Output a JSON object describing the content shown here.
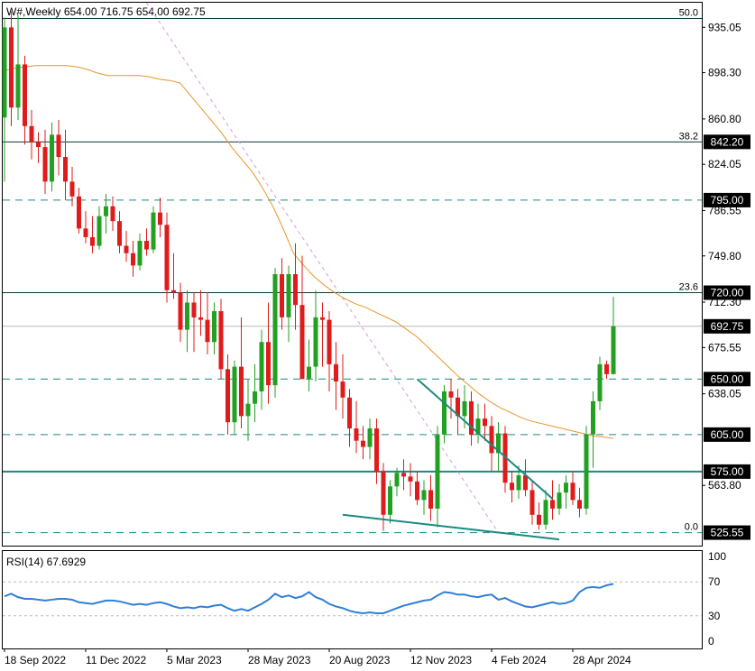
{
  "header": {
    "symbol": "W#",
    "timeframe": "Weekly",
    "open": "654.00",
    "high": "716.75",
    "low": "654.00",
    "close": "692.75"
  },
  "colors": {
    "up": "#22a022",
    "down": "#e01b1b",
    "ma": "#e8962a",
    "teal": "#1a8a80",
    "rsi": "#2f7fd6",
    "fib_diag": "#d79ad7",
    "badge_fill": "#000000",
    "badge_text": "#ffffff"
  },
  "chart_data": [
    {
      "type": "candlestick",
      "title": "W#,Weekly 654.00 716.75 654.00 692.75",
      "y_range": [
        515.0,
        955.0
      ],
      "y_ticks": [
        "935.05",
        "898.30",
        "860.80",
        "824.05",
        "786.55",
        "749.80",
        "712.30",
        "675.55",
        "638.05",
        "563.80"
      ],
      "x_ticks": [
        "18 Sep 2022",
        "11 Dec 2022",
        "5 Mar 2023",
        "28 May 2023",
        "20 Aug 2023",
        "12 Nov 2023",
        "4 Feb 2024",
        "28 Apr 2024"
      ],
      "x_tick_index": [
        0,
        12,
        24,
        36,
        48,
        60,
        72,
        84
      ],
      "candles": [
        [
          862,
          943,
          810,
          935
        ],
        [
          935,
          948,
          855,
          870
        ],
        [
          870,
          945,
          860,
          905
        ],
        [
          905,
          912,
          840,
          855
        ],
        [
          855,
          868,
          828,
          842
        ],
        [
          842,
          850,
          825,
          838
        ],
        [
          838,
          852,
          800,
          810
        ],
        [
          810,
          858,
          802,
          848
        ],
        [
          848,
          860,
          815,
          830
        ],
        [
          830,
          852,
          795,
          810
        ],
        [
          810,
          822,
          790,
          798
        ],
        [
          798,
          805,
          768,
          772
        ],
        [
          772,
          786,
          760,
          765
        ],
        [
          765,
          782,
          752,
          758
        ],
        [
          758,
          790,
          755,
          782
        ],
        [
          782,
          800,
          768,
          790
        ],
        [
          790,
          798,
          770,
          778
        ],
        [
          778,
          786,
          752,
          758
        ],
        [
          758,
          770,
          745,
          752
        ],
        [
          752,
          762,
          733,
          742
        ],
        [
          742,
          768,
          738,
          762
        ],
        [
          762,
          772,
          750,
          755
        ],
        [
          755,
          790,
          752,
          785
        ],
        [
          785,
          797,
          765,
          775
        ],
        [
          775,
          785,
          712,
          722
        ],
        [
          722,
          752,
          715,
          720
        ],
        [
          720,
          728,
          680,
          690
        ],
        [
          690,
          722,
          672,
          712
        ],
        [
          712,
          720,
          672,
          700
        ],
        [
          700,
          722,
          685,
          698
        ],
        [
          698,
          720,
          670,
          680
        ],
        [
          680,
          712,
          670,
          705
        ],
        [
          705,
          715,
          650,
          658
        ],
        [
          658,
          670,
          605,
          615
        ],
        [
          615,
          665,
          605,
          660
        ],
        [
          660,
          700,
          610,
          620
        ],
        [
          620,
          650,
          600,
          630
        ],
        [
          630,
          662,
          615,
          640
        ],
        [
          640,
          690,
          625,
          680
        ],
        [
          680,
          712,
          630,
          645
        ],
        [
          645,
          740,
          635,
          735
        ],
        [
          735,
          748,
          690,
          700
        ],
        [
          700,
          742,
          680,
          735
        ],
        [
          735,
          760,
          690,
          710
        ],
        [
          710,
          750,
          650,
          650
        ],
        [
          650,
          682,
          640,
          660
        ],
        [
          660,
          722,
          648,
          700
        ],
        [
          700,
          712,
          660,
          698
        ],
        [
          698,
          705,
          640,
          662
        ],
        [
          662,
          680,
          625,
          648
        ],
        [
          648,
          670,
          618,
          635
        ],
        [
          635,
          642,
          595,
          610
        ],
        [
          610,
          632,
          590,
          600
        ],
        [
          600,
          612,
          585,
          595
        ],
        [
          595,
          618,
          585,
          610
        ],
        [
          610,
          618,
          565,
          575
        ],
        [
          575,
          582,
          527,
          540
        ],
        [
          540,
          568,
          533,
          563
        ],
        [
          563,
          578,
          555,
          574
        ],
        [
          574,
          585,
          560,
          571
        ],
        [
          571,
          582,
          555,
          567
        ],
        [
          567,
          575,
          548,
          552
        ],
        [
          552,
          568,
          540,
          560
        ],
        [
          560,
          572,
          535,
          545
        ],
        [
          545,
          612,
          530,
          605
        ],
        [
          605,
          645,
          598,
          640
        ],
        [
          640,
          650,
          618,
          635
        ],
        [
          635,
          642,
          605,
          620
        ],
        [
          620,
          645,
          610,
          632
        ],
        [
          632,
          640,
          596,
          605
        ],
        [
          605,
          630,
          598,
          618
        ],
        [
          618,
          630,
          600,
          612
        ],
        [
          612,
          620,
          575,
          590
        ],
        [
          590,
          615,
          575,
          606
        ],
        [
          606,
          612,
          558,
          566
        ],
        [
          566,
          575,
          550,
          560
        ],
        [
          560,
          580,
          553,
          572
        ],
        [
          572,
          585,
          555,
          560
        ],
        [
          560,
          568,
          532,
          540
        ],
        [
          540,
          550,
          528,
          532
        ],
        [
          532,
          560,
          528,
          552
        ],
        [
          552,
          568,
          536,
          545
        ],
        [
          545,
          565,
          540,
          558
        ],
        [
          558,
          572,
          545,
          566
        ],
        [
          566,
          575,
          548,
          552
        ],
        [
          552,
          562,
          538,
          545
        ],
        [
          545,
          612,
          540,
          605
        ],
        [
          605,
          640,
          578,
          632
        ],
        [
          632,
          668,
          625,
          662
        ],
        [
          662,
          665,
          650,
          654
        ],
        [
          654,
          716.75,
          654,
          692.75
        ]
      ],
      "ma_series": [
        {
          "name": "",
          "values": [
            900,
            902,
            903,
            904,
            904,
            904,
            904,
            903,
            901,
            898,
            896,
            896,
            896,
            896,
            895,
            893,
            892,
            890,
            880,
            870,
            860,
            850,
            838,
            828,
            818,
            805,
            790,
            772,
            752,
            742,
            733,
            726,
            720,
            715,
            711,
            708,
            704,
            700,
            696,
            690,
            684,
            676,
            668,
            660,
            652,
            645,
            638,
            632,
            627,
            623,
            619,
            616,
            614,
            612,
            610,
            608,
            606,
            604,
            603,
            602
          ]
        }
      ],
      "ma_start_index": 0,
      "hlines": [
        {
          "value": 942.2,
          "style": "solid",
          "label": "50.0"
        },
        {
          "value": 842.2,
          "style": "solid",
          "label": "38.2",
          "badge": "842.20"
        },
        {
          "value": 795.0,
          "style": "dashed",
          "badge": "795.00"
        },
        {
          "value": 720.0,
          "style": "solid",
          "label": "23.6",
          "badge": "720.00"
        },
        {
          "value": 692.75,
          "style": "gray",
          "badge": "692.75"
        },
        {
          "value": 650.0,
          "style": "dashed",
          "badge": "650.00"
        },
        {
          "value": 605.0,
          "style": "dashed",
          "badge": "605.00"
        },
        {
          "value": 575.0,
          "style": "solid-thick",
          "badge": "575.00"
        },
        {
          "value": 525.55,
          "style": "dashed",
          "label": "0.0",
          "badge": "525.55"
        }
      ],
      "trendlines": [
        {
          "from": [
            61,
            650
          ],
          "to": [
            81,
            553
          ]
        },
        {
          "from": [
            50,
            540
          ],
          "to": [
            82,
            520
          ]
        }
      ],
      "fib_diagonal": {
        "from": [
          21,
          955
        ],
        "to": [
          73,
          525.55
        ]
      }
    },
    {
      "type": "line",
      "title": "RSI(14) 67.6929",
      "y_range": [
        0,
        100
      ],
      "y_ticks": [
        "100",
        "70",
        "30",
        "0"
      ],
      "levels": [
        70,
        30
      ],
      "series": [
        {
          "name": "RSI(14)",
          "values": [
            53,
            56,
            52,
            50,
            50,
            49,
            48,
            49,
            50,
            50,
            49,
            46,
            45,
            44,
            46,
            48,
            48,
            47,
            45,
            43,
            44,
            43,
            45,
            46,
            44,
            41,
            39,
            40,
            39,
            41,
            40,
            42,
            43,
            39,
            36,
            38,
            36,
            40,
            44,
            49,
            56,
            52,
            54,
            51,
            53,
            58,
            52,
            49,
            44,
            41,
            39,
            36,
            34,
            33,
            34,
            33,
            33,
            36,
            39,
            42,
            44,
            46,
            48,
            49,
            54,
            58,
            57,
            55,
            55,
            53,
            52,
            54,
            55,
            49,
            51,
            47,
            44,
            41,
            40,
            42,
            44,
            46,
            44,
            45,
            48,
            58,
            63,
            64,
            63,
            66,
            67.69
          ]
        }
      ]
    }
  ]
}
